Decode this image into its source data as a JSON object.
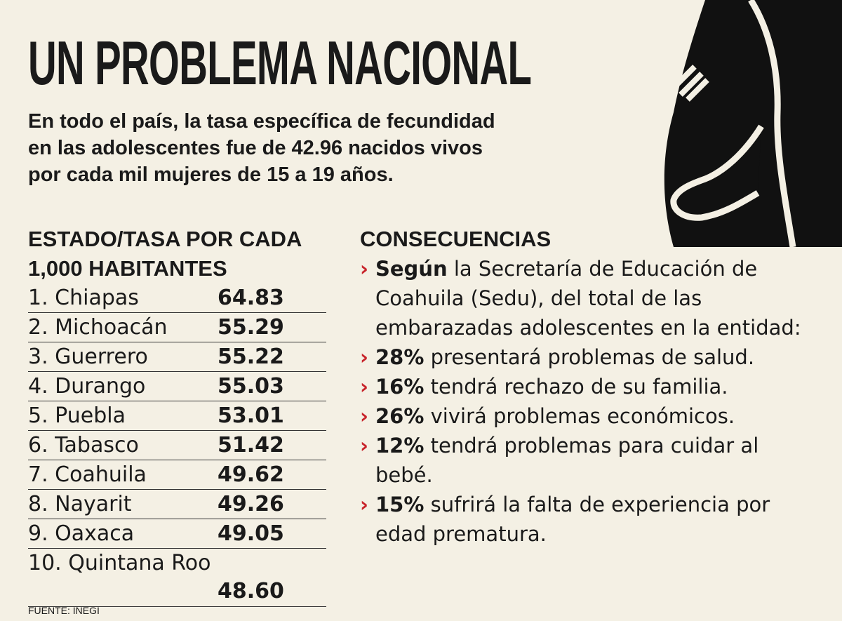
{
  "header": {
    "title": "UN PROBLEMA NACIONAL",
    "intro": [
      "En todo el país, la tasa específica de fecundidad",
      "en las adolescentes fue de 42.96 nacidos vivos",
      "por cada mil mujeres de 15 a 19 años."
    ]
  },
  "table": {
    "heading": [
      "ESTADO/TASA POR CADA",
      "1,000 HABITANTES"
    ],
    "rows": [
      [
        "1. Chiapas",
        "64.83"
      ],
      [
        "2. Michoacán",
        "55.29"
      ],
      [
        "3. Guerrero",
        "55.22"
      ],
      [
        "4. Durango",
        "55.03"
      ],
      [
        "5. Puebla",
        "53.01"
      ],
      [
        "6. Tabasco",
        "51.42"
      ],
      [
        "7. Coahuila",
        "49.62"
      ],
      [
        "8. Nayarit",
        "49.26"
      ],
      [
        "9. Oaxaca",
        "49.05"
      ],
      [
        "10. Quintana Roo",
        "48.60"
      ]
    ],
    "source": "FUENTE: INEGI"
  },
  "consequences": {
    "heading": "CONSECUENCIAS",
    "items": [
      {
        "lead": "Según",
        "text": " la Secretaría de Educación de Coahuila (Sedu), del total de las embarazadas adolescentes en la entidad:"
      },
      {
        "lead": "28%",
        "text": " presentará problemas de salud."
      },
      {
        "lead": "16%",
        "text": " tendrá rechazo de su familia."
      },
      {
        "lead": "26%",
        "text": " vivirá problemas económicos."
      },
      {
        "lead": "12%",
        "text": " tendrá problemas para cuidar al bebé."
      },
      {
        "lead": "15%",
        "text": " sufrirá la falta de experiencia por edad prematura."
      }
    ]
  }
}
